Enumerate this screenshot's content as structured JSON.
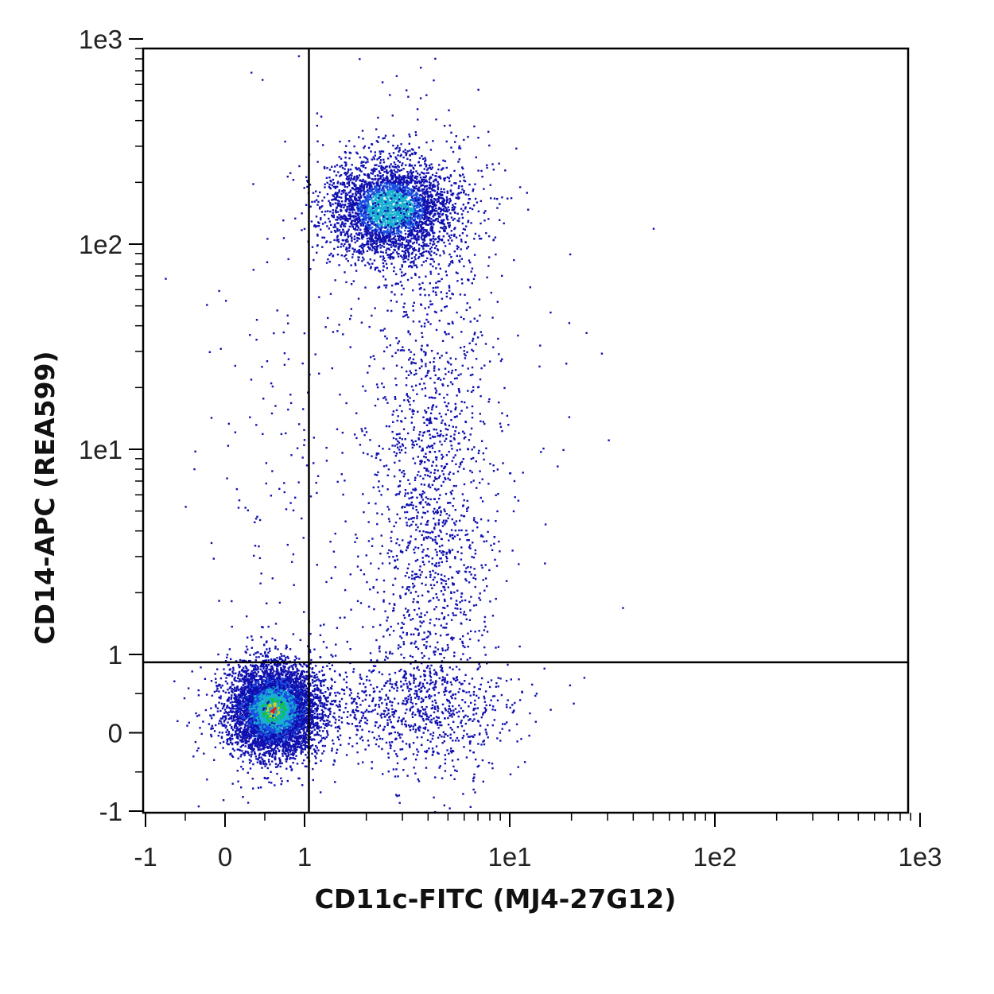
{
  "chart_data": {
    "type": "scatter",
    "title": "",
    "xlabel": "CD11c-FITC (MJ4-27G12)",
    "ylabel": "CD14-APC (REA599)",
    "scale": "biexponential",
    "xlim": [
      -1,
      1000
    ],
    "ylim": [
      -1,
      1000
    ],
    "x_ticks": [
      "-1",
      "0",
      "1",
      "1e1",
      "1e2",
      "1e3"
    ],
    "y_ticks": [
      "-1",
      "0",
      "1",
      "1e1",
      "1e2",
      "1e3"
    ],
    "gates": {
      "x": 1.05,
      "y": 0.9
    },
    "colors": {
      "low": "#1010b0",
      "mid": "#10c040",
      "high": "#e02010"
    },
    "populations": [
      {
        "center": [
          0.3,
          0.15
        ],
        "density": "high"
      },
      {
        "center": [
          2.6,
          150
        ],
        "density": "medium"
      },
      {
        "center": [
          4.5,
          5
        ],
        "density": "low"
      },
      {
        "center": [
          3.0,
          0.2
        ],
        "density": "low"
      }
    ]
  }
}
